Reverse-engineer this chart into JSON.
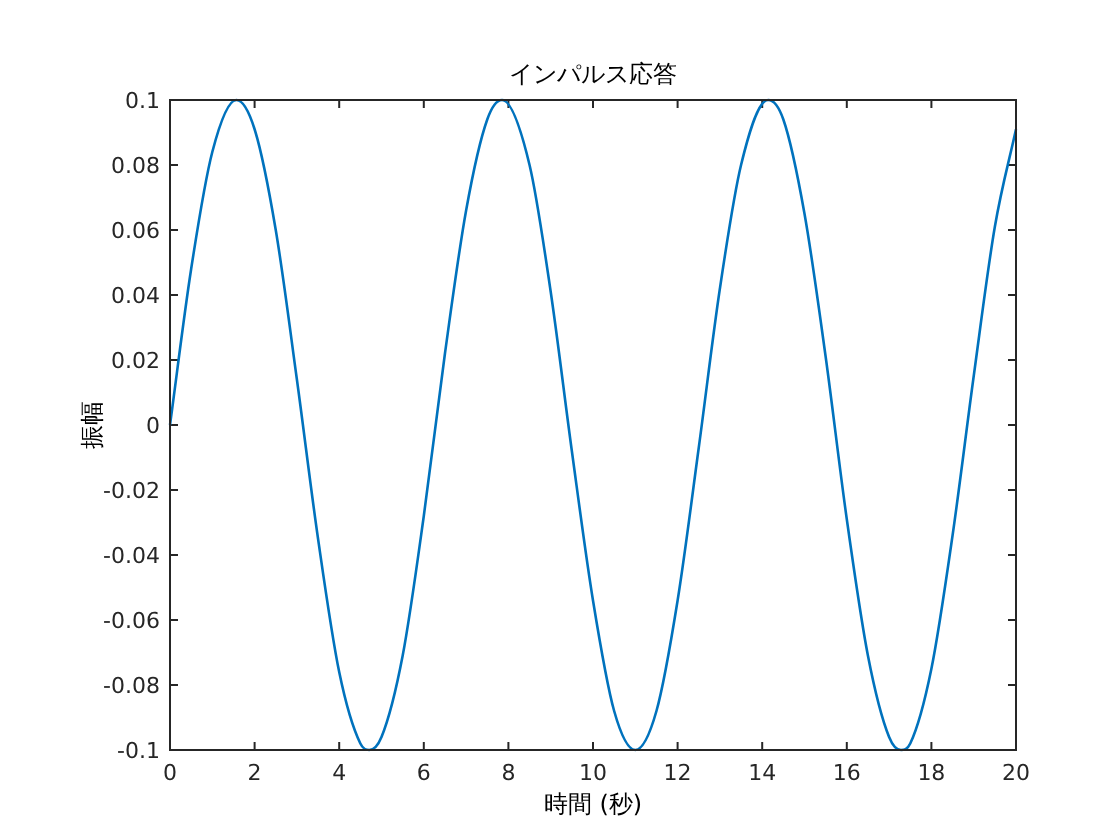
{
  "chart_data": {
    "type": "line",
    "title": "インパルス応答",
    "xlabel": "時間 (秒)",
    "ylabel": "振幅",
    "xlim": [
      0,
      20
    ],
    "ylim": [
      -0.1,
      0.1
    ],
    "xticks": [
      0,
      2,
      4,
      6,
      8,
      10,
      12,
      14,
      16,
      18,
      20
    ],
    "yticks": [
      -0.1,
      -0.08,
      -0.06,
      -0.04,
      -0.02,
      0,
      0.02,
      0.04,
      0.06,
      0.08,
      0.1
    ],
    "grid": false,
    "marker": "none",
    "line_style": "solid",
    "series": [
      {
        "color": "#0072bd",
        "x": [
          0,
          0.5,
          1,
          1.57,
          2,
          2.5,
          3,
          3.5,
          4,
          4.5,
          4.71,
          5,
          5.5,
          6,
          6.5,
          7,
          7.5,
          7.85,
          8.5,
          9,
          9.5,
          10,
          10.5,
          11,
          11.5,
          12,
          12.5,
          13,
          13.5,
          14.14,
          14.5,
          15,
          15.5,
          16,
          16.5,
          17,
          17.28,
          17.5,
          18,
          18.5,
          19,
          19.5,
          20
        ],
        "values": [
          0,
          0.048,
          0.084,
          0.1,
          0.091,
          0.06,
          0.014,
          -0.035,
          -0.076,
          -0.098,
          -0.1,
          -0.096,
          -0.071,
          -0.028,
          0.022,
          0.066,
          0.094,
          0.1,
          0.08,
          0.041,
          -0.008,
          -0.054,
          -0.088,
          -0.1,
          -0.088,
          -0.054,
          -0.007,
          0.042,
          0.08,
          0.1,
          0.094,
          0.065,
          0.021,
          -0.029,
          -0.071,
          -0.096,
          -0.1,
          -0.098,
          -0.075,
          -0.034,
          0.015,
          0.061,
          0.091
        ]
      }
    ]
  }
}
